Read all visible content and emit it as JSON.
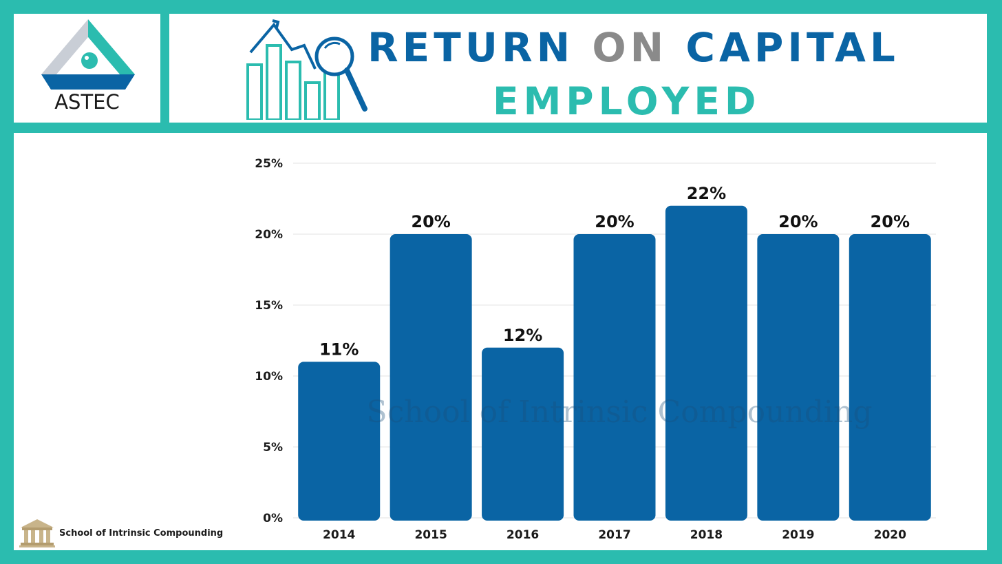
{
  "brand": {
    "name": "ASTEC",
    "colors": {
      "triangle_grey": "#c9ced6",
      "triangle_blue": "#0a64a4",
      "triangle_teal": "#2bbcaf"
    }
  },
  "title": {
    "line1_word1": "RETURN",
    "line1_word2": "ON",
    "line1_word3": "CAPITAL",
    "line2": "EMPLOYED",
    "icon": "bar-chart-magnifier-icon",
    "colors": {
      "blue": "#0a64a4",
      "grey": "#8a8a8a",
      "teal": "#2bbcaf"
    }
  },
  "footer": {
    "text": "School of Intrinsic Compounding",
    "icon": "school-building-icon"
  },
  "watermark": {
    "text": "School of Intrinsic Compounding"
  },
  "chart_data": {
    "type": "bar",
    "categories": [
      "2014",
      "2015",
      "2016",
      "2017",
      "2018",
      "2019",
      "2020"
    ],
    "values": [
      11,
      20,
      12,
      20,
      22,
      20,
      20
    ],
    "data_labels": [
      "11%",
      "20%",
      "12%",
      "20%",
      "22%",
      "20%",
      "20%"
    ],
    "y_ticks": [
      0,
      5,
      10,
      15,
      20,
      25
    ],
    "y_tick_labels": [
      "0%",
      "5%",
      "10%",
      "15%",
      "20%",
      "25%"
    ],
    "ylim": [
      0,
      25
    ],
    "grid": true,
    "legend": "none",
    "bar_color": "#0a64a4",
    "grid_color": "#e3e3e3"
  }
}
